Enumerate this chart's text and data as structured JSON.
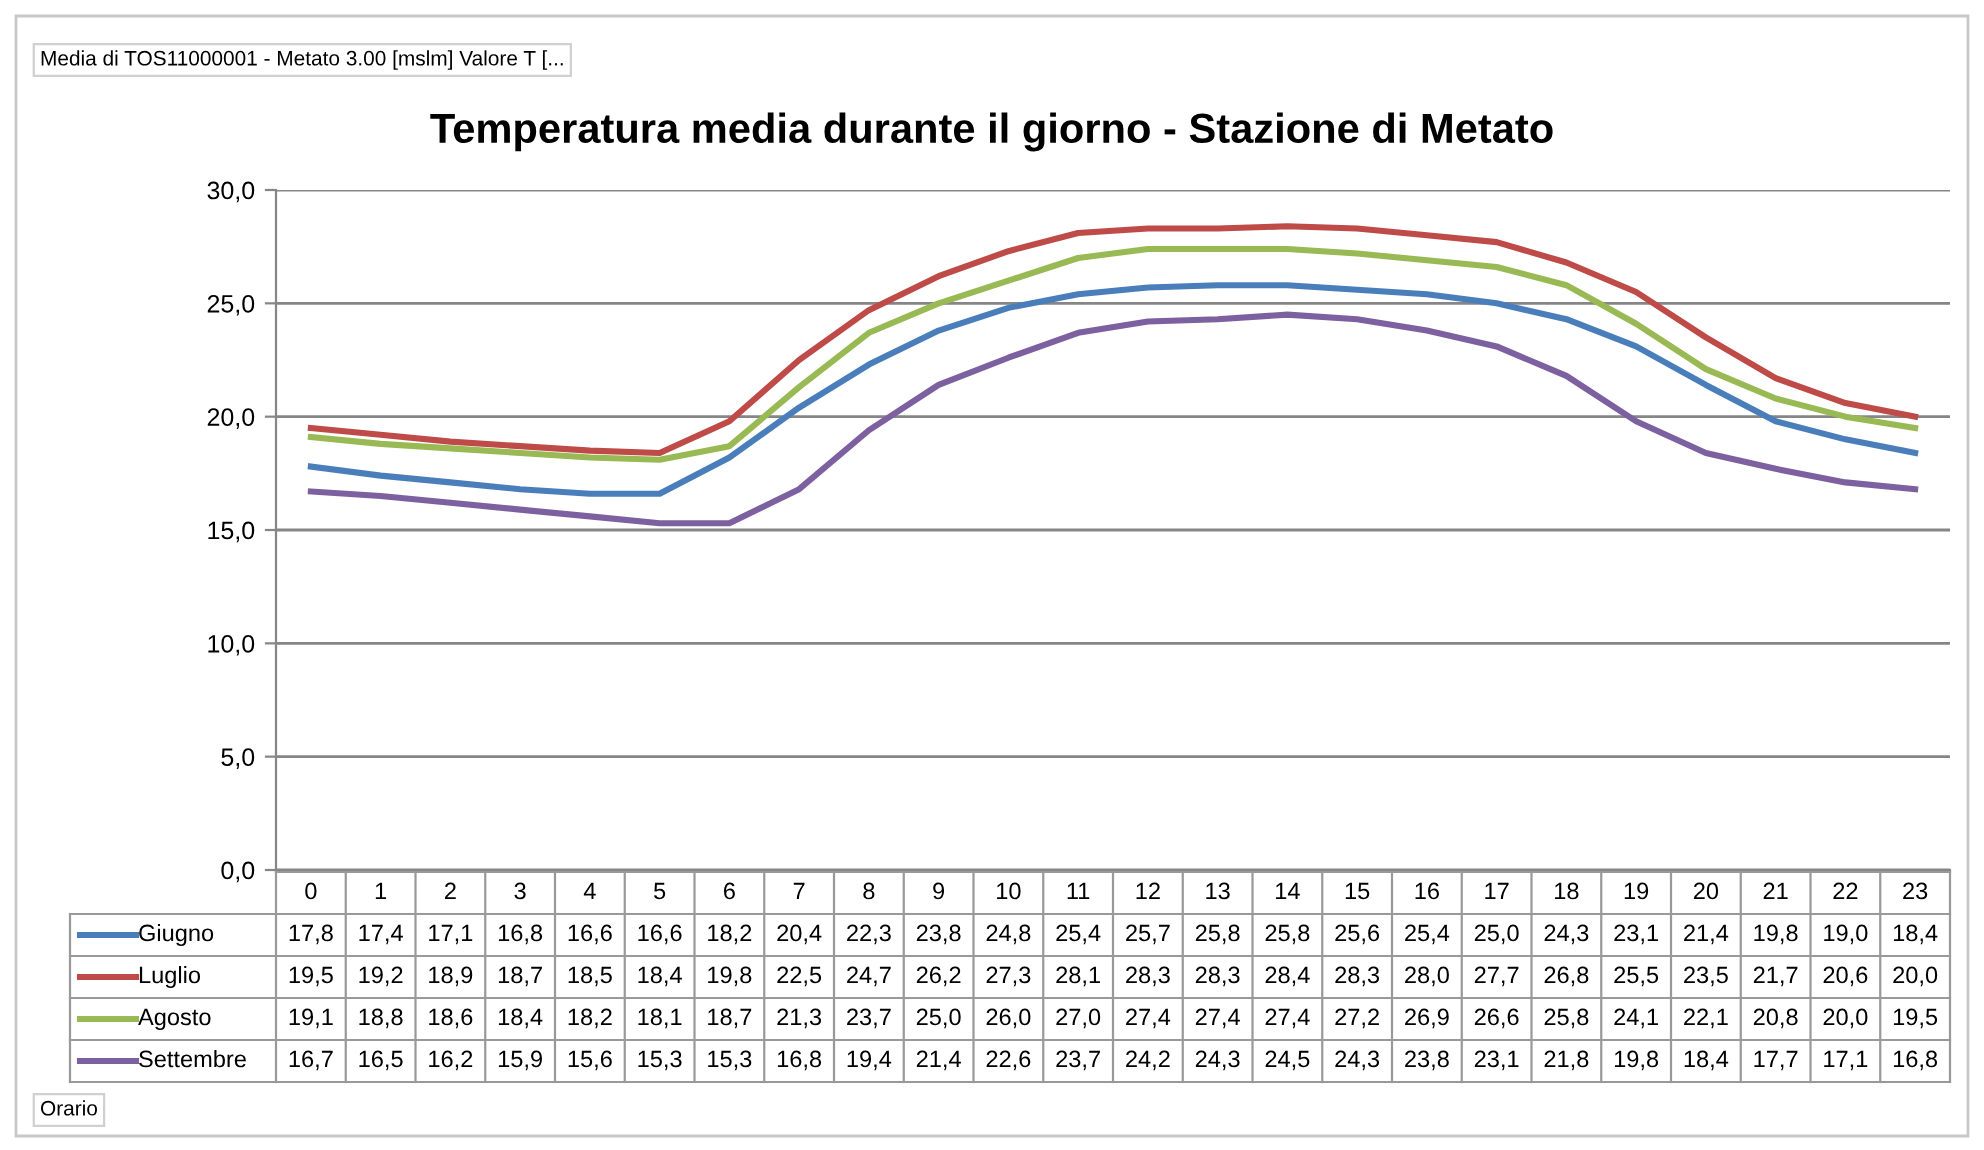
{
  "chart_data": {
    "type": "line",
    "title": "Temperatura media durante il giorno - Stazione di Metato",
    "annotations": [
      "Media di TOS11000001 - Metato 3.00 [mslm] Valore T [...",
      "Orario"
    ],
    "categories": [
      "0",
      "1",
      "2",
      "3",
      "4",
      "5",
      "6",
      "7",
      "8",
      "9",
      "10",
      "11",
      "12",
      "13",
      "14",
      "15",
      "16",
      "17",
      "18",
      "19",
      "20",
      "21",
      "22",
      "23"
    ],
    "series": [
      {
        "name": "Giugno",
        "color": "#4a7ebb",
        "values": [
          17.8,
          17.4,
          17.1,
          16.8,
          16.6,
          16.6,
          18.2,
          20.4,
          22.3,
          23.8,
          24.8,
          25.4,
          25.7,
          25.8,
          25.8,
          25.6,
          25.4,
          25.0,
          24.3,
          23.1,
          21.4,
          19.8,
          19.0,
          18.4
        ],
        "value_labels": [
          "17,8",
          "17,4",
          "17,1",
          "16,8",
          "16,6",
          "16,6",
          "18,2",
          "20,4",
          "22,3",
          "23,8",
          "24,8",
          "25,4",
          "25,7",
          "25,8",
          "25,8",
          "25,6",
          "25,4",
          "25,0",
          "24,3",
          "23,1",
          "21,4",
          "19,8",
          "19,0",
          "18,4"
        ]
      },
      {
        "name": "Luglio",
        "color": "#be4b48",
        "values": [
          19.5,
          19.2,
          18.9,
          18.7,
          18.5,
          18.4,
          19.8,
          22.5,
          24.7,
          26.2,
          27.3,
          28.1,
          28.3,
          28.3,
          28.4,
          28.3,
          28.0,
          27.7,
          26.8,
          25.5,
          23.5,
          21.7,
          20.6,
          20.0
        ],
        "value_labels": [
          "19,5",
          "19,2",
          "18,9",
          "18,7",
          "18,5",
          "18,4",
          "19,8",
          "22,5",
          "24,7",
          "26,2",
          "27,3",
          "28,1",
          "28,3",
          "28,3",
          "28,4",
          "28,3",
          "28,0",
          "27,7",
          "26,8",
          "25,5",
          "23,5",
          "21,7",
          "20,6",
          "20,0"
        ]
      },
      {
        "name": "Agosto",
        "color": "#98b954",
        "values": [
          19.1,
          18.8,
          18.6,
          18.4,
          18.2,
          18.1,
          18.7,
          21.3,
          23.7,
          25.0,
          26.0,
          27.0,
          27.4,
          27.4,
          27.4,
          27.2,
          26.9,
          26.6,
          25.8,
          24.1,
          22.1,
          20.8,
          20.0,
          19.5
        ],
        "value_labels": [
          "19,1",
          "18,8",
          "18,6",
          "18,4",
          "18,2",
          "18,1",
          "18,7",
          "21,3",
          "23,7",
          "25,0",
          "26,0",
          "27,0",
          "27,4",
          "27,4",
          "27,4",
          "27,2",
          "26,9",
          "26,6",
          "25,8",
          "24,1",
          "22,1",
          "20,8",
          "20,0",
          "19,5"
        ]
      },
      {
        "name": "Settembre",
        "color": "#7d60a0",
        "values": [
          16.7,
          16.5,
          16.2,
          15.9,
          15.6,
          15.3,
          15.3,
          16.8,
          19.4,
          21.4,
          22.6,
          23.7,
          24.2,
          24.3,
          24.5,
          24.3,
          23.8,
          23.1,
          21.8,
          19.8,
          18.4,
          17.7,
          17.1,
          16.8
        ],
        "value_labels": [
          "16,7",
          "16,5",
          "16,2",
          "15,9",
          "15,6",
          "15,3",
          "15,3",
          "16,8",
          "19,4",
          "21,4",
          "22,6",
          "23,7",
          "24,2",
          "24,3",
          "24,5",
          "24,3",
          "23,8",
          "23,1",
          "21,8",
          "19,8",
          "18,4",
          "17,7",
          "17,1",
          "16,8"
        ]
      }
    ],
    "ylim": [
      0,
      30
    ],
    "yticks": [
      {
        "value": 0,
        "label": "0,0"
      },
      {
        "value": 5,
        "label": "5,0"
      },
      {
        "value": 10,
        "label": "10,0"
      },
      {
        "value": 15,
        "label": "15,0"
      },
      {
        "value": 20,
        "label": "20,0"
      },
      {
        "value": 25,
        "label": "25,0"
      },
      {
        "value": 30,
        "label": "30,0"
      }
    ],
    "grid": "y",
    "legend": "bottom",
    "marker": "none",
    "line_style": "solid"
  }
}
